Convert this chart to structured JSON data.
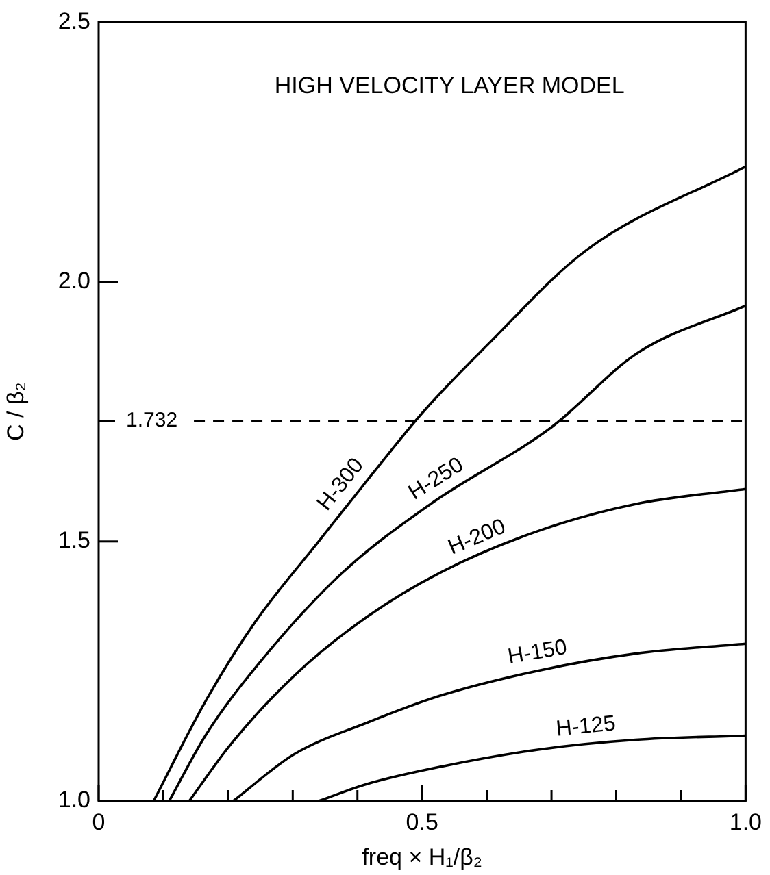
{
  "chart_data": {
    "type": "line",
    "title": "HIGH VELOCITY LAYER MODEL",
    "xlabel": "freq × H₁/β₂",
    "ylabel": "C / β₂",
    "xlim": [
      0,
      1
    ],
    "ylim": [
      1,
      2.5
    ],
    "xticks": [
      0,
      {
        "value": 0.1,
        "label": null
      },
      {
        "value": 0.2,
        "label": null
      },
      {
        "value": 0.3,
        "label": null
      },
      {
        "value": 0.4,
        "label": null
      },
      0.5,
      {
        "value": 0.6,
        "label": null
      },
      {
        "value": 0.7,
        "label": null
      },
      {
        "value": 0.8,
        "label": null
      },
      {
        "value": 0.9,
        "label": null
      },
      {
        "value": 1,
        "label": "1.0"
      }
    ],
    "yticks": [
      {
        "value": 1,
        "label": "1.0"
      },
      {
        "value": 1.5,
        "label": "1.5"
      },
      {
        "value": 2,
        "label": "2.0"
      },
      {
        "value": 2.5,
        "label": "2.5"
      }
    ],
    "series": [
      {
        "name": "H-300",
        "color": "#000000",
        "x": [
          0.085,
          0.166,
          0.242,
          0.34,
          0.423,
          0.502,
          0.603,
          0.754,
          1.0
        ],
        "values": [
          1.0,
          1.194,
          1.345,
          1.5,
          1.63,
          1.75,
          1.881,
          2.061,
          2.222
        ]
      },
      {
        "name": "H-250",
        "color": "#000000",
        "x": [
          0.109,
          0.166,
          0.257,
          0.377,
          0.513,
          0.7,
          0.833,
          1.0
        ],
        "values": [
          1.0,
          1.128,
          1.279,
          1.44,
          1.572,
          1.72,
          1.863,
          1.954
        ]
      },
      {
        "name": "H-200",
        "color": "#000000",
        "x": [
          0.14,
          0.204,
          0.302,
          0.415,
          0.528,
          0.679,
          0.83,
          1.0
        ],
        "values": [
          1.0,
          1.109,
          1.241,
          1.355,
          1.44,
          1.52,
          1.572,
          1.601
        ]
      },
      {
        "name": "H-150",
        "color": "#000000",
        "x": [
          0.208,
          0.302,
          0.415,
          0.528,
          0.679,
          0.83,
          1.0
        ],
        "values": [
          1.0,
          1.09,
          1.151,
          1.203,
          1.251,
          1.284,
          1.303
        ]
      },
      {
        "name": "H-125",
        "color": "#000000",
        "x": [
          0.34,
          0.415,
          0.528,
          0.679,
          0.83,
          1.0
        ],
        "values": [
          1.0,
          1.033,
          1.066,
          1.099,
          1.118,
          1.126
        ]
      }
    ],
    "ref_lines": [
      {
        "axis": "y",
        "value": 1.732,
        "label": "1.732",
        "line_style": "dashed",
        "color": "#000000"
      }
    ],
    "legend": false,
    "grid": false,
    "marker": "none",
    "line_style": "solid"
  }
}
